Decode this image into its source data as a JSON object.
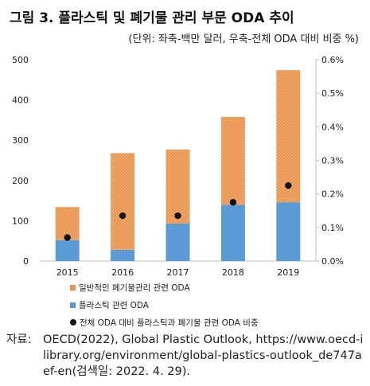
{
  "title": "그림 3. 플라스틱 및 폐기물 관리 부문 ODA 추이",
  "subtitle": "(단위: 좌축-백만 달러, 우축-전체 ODA 대비 비중 %)",
  "colors": {
    "waste": "#e8924a",
    "waste_dot": "#f6c9a0",
    "plastic": "#5b9bd5",
    "share": "#111111",
    "axis": "#bfbfbf"
  },
  "chart_data": {
    "type": "bar",
    "stacked": true,
    "categories": [
      "2015",
      "2016",
      "2017",
      "2018",
      "2019"
    ],
    "series": [
      {
        "name": "플라스틱 관련 ODA",
        "type": "bar",
        "axis": "left",
        "values": [
          52,
          28,
          93,
          140,
          146
        ]
      },
      {
        "name": "일반적인 폐기물관리 관련 ODA",
        "type": "bar",
        "axis": "left",
        "values": [
          82,
          240,
          184,
          218,
          328
        ]
      },
      {
        "name": "전체 ODA 대비 플라스틱과 폐기물 관련 ODA 비중",
        "type": "scatter",
        "axis": "right",
        "values": [
          0.07,
          0.135,
          0.135,
          0.175,
          0.225
        ]
      }
    ],
    "ylim_left": [
      0,
      500
    ],
    "yticks_left": [
      "0",
      "100",
      "200",
      "300",
      "400",
      "500"
    ],
    "ylim_right": [
      0,
      0.6
    ],
    "yticks_right": [
      "0.0%",
      "0.1%",
      "0.2%",
      "0.3%",
      "0.4%",
      "0.5%",
      "0.6%"
    ],
    "grid": false,
    "legend_position": "bottom"
  },
  "legend": [
    {
      "label": "일반적인 폐기물관리 관련 ODA"
    },
    {
      "label": "플라스틱 관련 ODA"
    },
    {
      "label": "전체 ODA 대비 플라스틱과 폐기물 관련 ODA 비중"
    }
  ],
  "source": {
    "label": "자료:",
    "text": "OECD(2022), Global Plastic Outlook, https://www.oecd-ilibrary.org/environment/global-plastics-outlook_de747aef-en(검색일: 2022. 4. 29)."
  }
}
